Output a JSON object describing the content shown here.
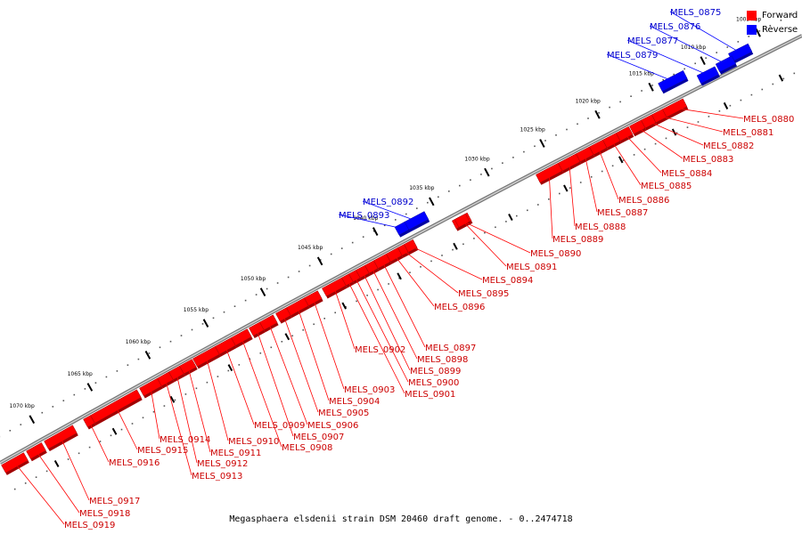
{
  "legend": {
    "forward_label": "Forward",
    "reverse_label": "Reverse",
    "forward_color": "#ff0000",
    "reverse_color": "#0000ff"
  },
  "caption": "Megasphaera elsdenii strain DSM 20460 draft genome. - 0..2474718",
  "ticks": [
    "1005 kbp",
    "1010 kbp",
    "1015 kbp",
    "1020 kbp",
    "1025 kbp",
    "1030 kbp",
    "1035 kbp",
    "1040 kbp",
    "1045 kbp",
    "1050 kbp",
    "1055 kbp",
    "1060 kbp",
    "1065 kbp",
    "1070 kbp"
  ],
  "genes": [
    {
      "name": "MELS_0875",
      "strand": "reverse"
    },
    {
      "name": "MELS_0876",
      "strand": "reverse"
    },
    {
      "name": "MELS_0877",
      "strand": "reverse"
    },
    {
      "name": "MELS_0879",
      "strand": "reverse"
    },
    {
      "name": "MELS_0880",
      "strand": "forward"
    },
    {
      "name": "MELS_0881",
      "strand": "forward"
    },
    {
      "name": "MELS_0882",
      "strand": "forward"
    },
    {
      "name": "MELS_0883",
      "strand": "forward"
    },
    {
      "name": "MELS_0884",
      "strand": "forward"
    },
    {
      "name": "MELS_0885",
      "strand": "forward"
    },
    {
      "name": "MELS_0886",
      "strand": "forward"
    },
    {
      "name": "MELS_0887",
      "strand": "forward"
    },
    {
      "name": "MELS_0888",
      "strand": "forward"
    },
    {
      "name": "MELS_0889",
      "strand": "forward"
    },
    {
      "name": "MELS_0890",
      "strand": "forward"
    },
    {
      "name": "MELS_0891",
      "strand": "forward"
    },
    {
      "name": "MELS_0892",
      "strand": "reverse"
    },
    {
      "name": "MELS_0893",
      "strand": "reverse"
    },
    {
      "name": "MELS_0894",
      "strand": "forward"
    },
    {
      "name": "MELS_0895",
      "strand": "forward"
    },
    {
      "name": "MELS_0896",
      "strand": "forward"
    },
    {
      "name": "MELS_0897",
      "strand": "forward"
    },
    {
      "name": "MELS_0898",
      "strand": "forward"
    },
    {
      "name": "MELS_0899",
      "strand": "forward"
    },
    {
      "name": "MELS_0900",
      "strand": "forward"
    },
    {
      "name": "MELS_0901",
      "strand": "forward"
    },
    {
      "name": "MELS_0902",
      "strand": "forward"
    },
    {
      "name": "MELS_0903",
      "strand": "forward"
    },
    {
      "name": "MELS_0904",
      "strand": "forward"
    },
    {
      "name": "MELS_0905",
      "strand": "forward"
    },
    {
      "name": "MELS_0906",
      "strand": "forward"
    },
    {
      "name": "MELS_0907",
      "strand": "forward"
    },
    {
      "name": "MELS_0908",
      "strand": "forward"
    },
    {
      "name": "MELS_0909",
      "strand": "forward"
    },
    {
      "name": "MELS_0910",
      "strand": "forward"
    },
    {
      "name": "MELS_0911",
      "strand": "forward"
    },
    {
      "name": "MELS_0912",
      "strand": "forward"
    },
    {
      "name": "MELS_0913",
      "strand": "forward"
    },
    {
      "name": "MELS_0914",
      "strand": "forward"
    },
    {
      "name": "MELS_0915",
      "strand": "forward"
    },
    {
      "name": "MELS_0916",
      "strand": "forward"
    },
    {
      "name": "MELS_0917",
      "strand": "forward"
    },
    {
      "name": "MELS_0918",
      "strand": "forward"
    },
    {
      "name": "MELS_0919",
      "strand": "forward"
    }
  ]
}
